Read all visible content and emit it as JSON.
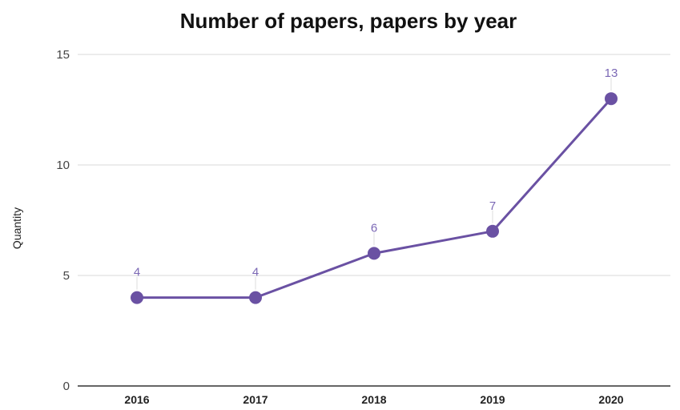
{
  "chart_data": {
    "type": "line",
    "title": "Number of papers, papers by year",
    "xlabel": "",
    "ylabel": "Quantity",
    "categories": [
      "2016",
      "2017",
      "2018",
      "2019",
      "2020"
    ],
    "series": [
      {
        "values": [
          4,
          4,
          6,
          7,
          13
        ]
      }
    ],
    "ylim": [
      0,
      15
    ],
    "yticks": [
      0,
      5,
      10,
      15
    ],
    "grid": true,
    "legend": "none",
    "data_labels": true,
    "colors": {
      "series": "#6a51a3",
      "label": "#7b68b5",
      "grid": "#d9d9d9",
      "axis": "#333333"
    }
  }
}
